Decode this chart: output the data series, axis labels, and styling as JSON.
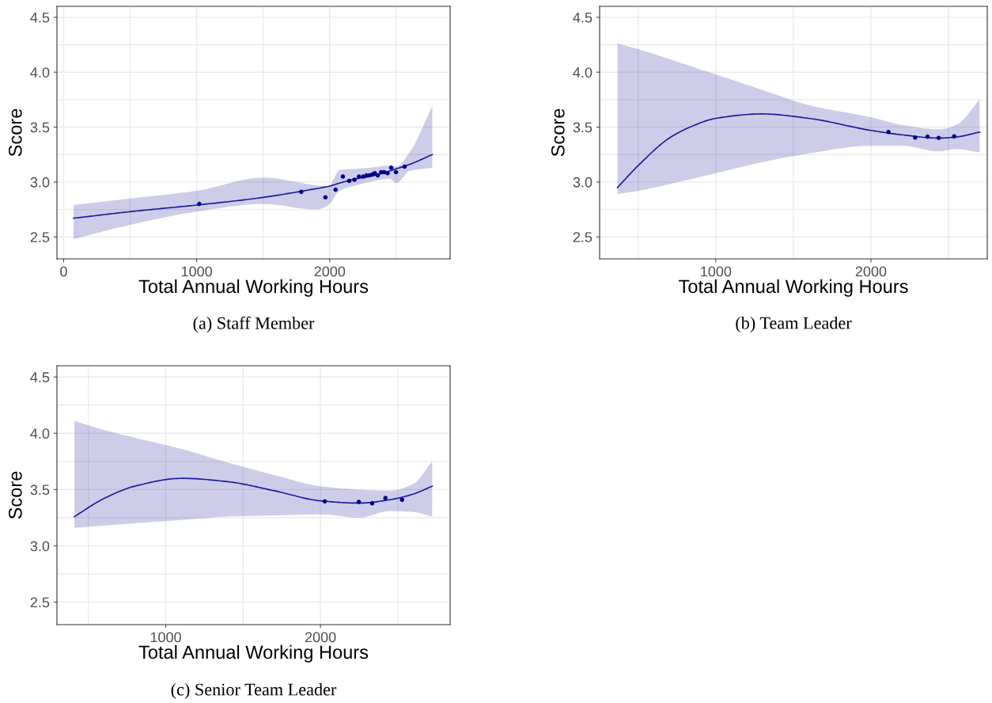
{
  "chart_data": [
    {
      "type": "scatter",
      "xlabel": "Total Annual Working Hours",
      "ylabel": "Score",
      "annotations": [
        "(a) Staff Member"
      ],
      "grid": true,
      "xlim": [
        -50,
        2905
      ],
      "xticks": [
        0,
        {
          "value": 500,
          "label": null
        },
        1000,
        {
          "value": 1500,
          "label": null
        },
        2000,
        {
          "value": 2500,
          "label": null
        }
      ],
      "ylim": [
        2.3,
        4.6
      ],
      "yticks": [
        2.5,
        {
          "value": 2.75,
          "label": null
        },
        "3.0",
        {
          "value": 3.25,
          "label": null
        },
        3.5,
        {
          "value": 3.75,
          "label": null
        },
        "4.0",
        {
          "value": 4.25,
          "label": null
        },
        4.5
      ],
      "series": [
        {
          "type": "scatter",
          "marker": "circle",
          "color": "#00008b",
          "x": [
            1020,
            1786,
            1968,
            2044,
            2099,
            2147,
            2186,
            2220,
            2252,
            2276,
            2298,
            2321,
            2339,
            2361,
            2387,
            2409,
            2435,
            2462,
            2498,
            2563
          ],
          "values": [
            2.8,
            2.91,
            2.86,
            2.93,
            3.05,
            3.01,
            3.02,
            3.05,
            3.05,
            3.06,
            3.06,
            3.07,
            3.08,
            3.06,
            3.09,
            3.09,
            3.08,
            3.13,
            3.09,
            3.14
          ]
        },
        {
          "type": "line",
          "color": "#1c1c9c",
          "x": [
            75,
            500,
            1000,
            1500,
            1900,
            1990,
            2075,
            2200,
            2300,
            2450,
            2500,
            2600,
            2771
          ],
          "values": [
            2.67,
            2.73,
            2.79,
            2.86,
            2.94,
            2.96,
            2.99,
            3.03,
            3.05,
            3.1,
            3.12,
            3.16,
            3.25
          ],
          "lower": [
            2.48,
            2.61,
            2.73,
            2.8,
            2.75,
            2.79,
            2.92,
            2.97,
            3.0,
            3.03,
            2.99,
            3.1,
            3.13
          ],
          "upper": [
            2.79,
            2.85,
            2.92,
            3.04,
            2.97,
            2.96,
            3.11,
            3.12,
            3.13,
            3.15,
            3.14,
            3.27,
            3.69
          ]
        }
      ]
    },
    {
      "type": "scatter",
      "xlabel": "Total Annual Working Hours",
      "ylabel": "Score",
      "annotations": [
        "(b) Team Leader"
      ],
      "grid": true,
      "xlim": [
        251,
        2750
      ],
      "xticks": [
        {
          "value": 500,
          "label": null
        },
        1000,
        {
          "value": 1500,
          "label": null
        },
        2000,
        {
          "value": 2500,
          "label": null
        }
      ],
      "ylim": [
        2.3,
        4.6
      ],
      "yticks": [
        2.5,
        {
          "value": 2.75,
          "label": null
        },
        "3.0",
        {
          "value": 3.25,
          "label": null
        },
        3.5,
        {
          "value": 3.75,
          "label": null
        },
        "4.0",
        {
          "value": 4.25,
          "label": null
        },
        4.5
      ],
      "series": [
        {
          "type": "scatter",
          "marker": "circle",
          "color": "#00008b",
          "x": [
            2113,
            2285,
            2365,
            2437,
            2537
          ],
          "values": [
            3.455,
            3.405,
            3.413,
            3.402,
            3.416
          ]
        },
        {
          "type": "line",
          "color": "#1c1c9c",
          "x": [
            366,
            500,
            700,
            850,
            1000,
            1297,
            1600,
            2000,
            2200,
            2437,
            2550,
            2701
          ],
          "values": [
            2.95,
            3.15,
            3.4,
            3.51,
            3.58,
            3.62,
            3.58,
            3.47,
            3.43,
            3.4,
            3.41,
            3.455
          ],
          "lower": [
            2.89,
            2.92,
            2.98,
            3.03,
            3.08,
            3.18,
            3.26,
            3.33,
            3.33,
            3.28,
            3.3,
            3.27
          ],
          "upper": [
            4.26,
            4.21,
            4.12,
            4.05,
            3.98,
            3.84,
            3.7,
            3.59,
            3.52,
            3.48,
            3.52,
            3.75
          ]
        }
      ]
    },
    {
      "type": "scatter",
      "xlabel": "Total Annual Working Hours",
      "ylabel": "Score",
      "annotations": [
        "(c) Senior Team Leader"
      ],
      "grid": true,
      "xlim": [
        297,
        2838
      ],
      "xticks": [
        {
          "value": 500,
          "label": null
        },
        1000,
        {
          "value": 1500,
          "label": null
        },
        2000,
        {
          "value": 2500,
          "label": null
        }
      ],
      "ylim": [
        2.3,
        4.6
      ],
      "yticks": [
        2.5,
        {
          "value": 2.75,
          "label": null
        },
        "3.0",
        {
          "value": 3.25,
          "label": null
        },
        3.5,
        {
          "value": 3.75,
          "label": null
        },
        "4.0",
        {
          "value": 4.25,
          "label": null
        },
        4.5
      ],
      "series": [
        {
          "type": "scatter",
          "marker": "circle",
          "color": "#00008b",
          "x": [
            2028,
            2248,
            2334,
            2420,
            2527
          ],
          "values": [
            3.395,
            3.39,
            3.377,
            3.425,
            3.41
          ]
        },
        {
          "type": "line",
          "color": "#1c1c9c",
          "x": [
            410,
            600,
            800,
            1104,
            1400,
            1700,
            2000,
            2250,
            2450,
            2600,
            2722
          ],
          "values": [
            3.26,
            3.42,
            3.53,
            3.6,
            3.57,
            3.49,
            3.4,
            3.38,
            3.41,
            3.46,
            3.53
          ],
          "lower": [
            3.16,
            3.18,
            3.2,
            3.23,
            3.26,
            3.27,
            3.28,
            3.25,
            3.31,
            3.3,
            3.26
          ],
          "upper": [
            4.11,
            4.03,
            3.96,
            3.86,
            3.74,
            3.63,
            3.53,
            3.5,
            3.49,
            3.55,
            3.75
          ]
        }
      ]
    }
  ]
}
